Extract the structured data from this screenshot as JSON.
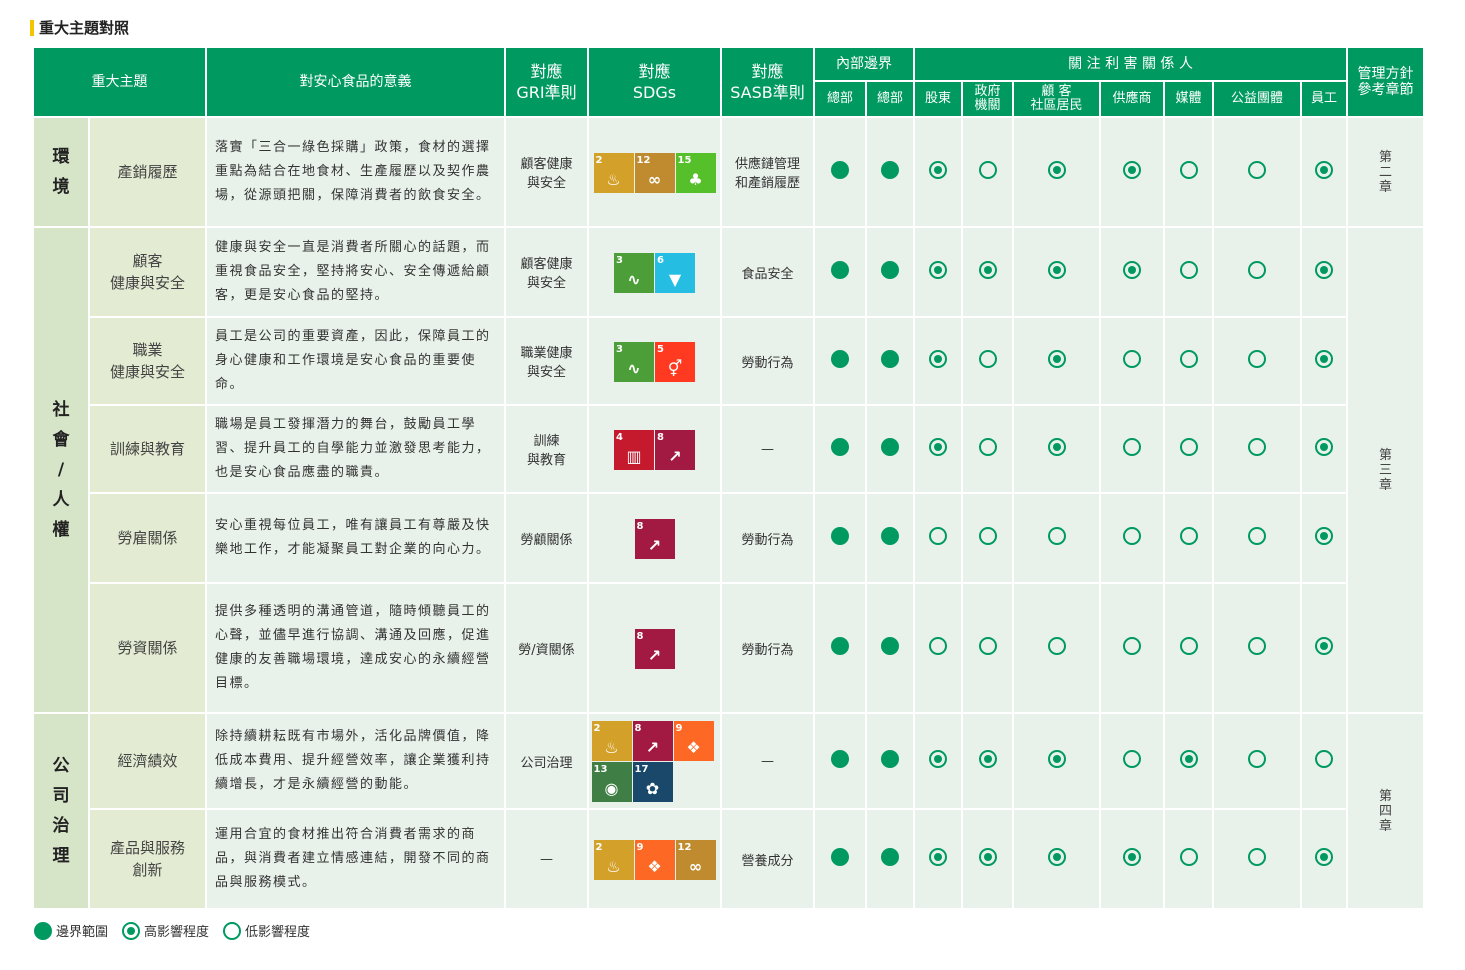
{
  "title": "重大主題對照",
  "headers": {
    "topic": "重大主題",
    "meaning": "對安心食品的意義",
    "gri": "對應\nGRI準則",
    "sdgs": "對應\nSDGs",
    "sasb": "對應\nSASB準則",
    "internal": "內部邊界",
    "stakeholders": "關 注 利 害 關 係 人",
    "chapter": "管理方針\n參考章節",
    "cols": [
      "總部",
      "總部",
      "股東",
      "政府\n機關",
      "顧 客\n社區居民",
      "供應商",
      "媒體",
      "公益團體",
      "員工"
    ]
  },
  "groups": [
    {
      "name": "環\n境",
      "rows": 1,
      "chapter": "第\n二\n章"
    },
    {
      "name": "社\n會\n/\n人\n權",
      "rows": 5,
      "chapter": "第\n三\n章"
    },
    {
      "name": "公\n司\n治\n理",
      "rows": 2,
      "chapter": "第\n四\n章"
    }
  ],
  "rows": [
    {
      "topic": "產銷履歷",
      "meaning": "落實「三合一綠色採購」政策，食材的選擇重點為結合在地食材、生產履歷以及契作農場，從源頭把關，保障消費者的飲食安全。",
      "gri": "顧客健康\n與安全",
      "sdgs": [
        2,
        12,
        15
      ],
      "sasb": "供應鏈管理\n和產銷履歷",
      "marks": "FFHLHHLLH"
    },
    {
      "topic": "顧客\n健康與安全",
      "meaning": "健康與安全一直是消費者所關心的話題，而重視食品安全，堅持將安心、安全傳遞給顧客，更是安心食品的堅持。",
      "gri": "顧客健康\n與安全",
      "sdgs": [
        3,
        6
      ],
      "sasb": "食品安全",
      "marks": "FFHHHHLLH"
    },
    {
      "topic": "職業\n健康與安全",
      "meaning": "員工是公司的重要資產，因此，保障員工的身心健康和工作環境是安心食品的重要使命。",
      "gri": "職業健康\n與安全",
      "sdgs": [
        3,
        5
      ],
      "sasb": "勞動行為",
      "marks": "FFHLHLLLH"
    },
    {
      "topic": "訓練與教育",
      "meaning": "職場是員工發揮潛力的舞台，鼓勵員工學習、提升員工的自學能力並激發思考能力，也是安心食品應盡的職責。",
      "gri": "訓練\n與教育",
      "sdgs": [
        4,
        8
      ],
      "sasb": "—",
      "marks": "FFHLHLLLH"
    },
    {
      "topic": "勞雇關係",
      "meaning": "安心重視每位員工，唯有讓員工有尊嚴及快樂地工作，才能凝聚員工對企業的向心力。",
      "gri": "勞顧關係",
      "sdgs": [
        8
      ],
      "sasb": "勞動行為",
      "marks": "FFLLLLLLH"
    },
    {
      "topic": "勞資關係",
      "meaning": "提供多種透明的溝通管道，隨時傾聽員工的心聲，並儘早進行協調、溝通及回應，促進健康的友善職場環境，達成安心的永續經營目標。",
      "gri": "勞/資關係",
      "sdgs": [
        8
      ],
      "sasb": "勞動行為",
      "marks": "FFLLLLLLH"
    },
    {
      "topic": "經濟績效",
      "meaning": "除持續耕耘既有市場外，活化品牌價值，降低成本費用、提升經營效率，讓企業獲利持續增長，才是永續經營的動能。",
      "gri": "公司治理",
      "sdgs": [
        2,
        8,
        9,
        13,
        17
      ],
      "sasb": "—",
      "marks": "FFHHHLHLL"
    },
    {
      "topic": "產品與服務\n創新",
      "meaning": "運用合宜的食材推出符合消費者需求的商品，與消費者建立情感連結，開發不同的商品與服務模式。",
      "gri": "—",
      "sdgs": [
        2,
        9,
        12
      ],
      "sasb": "營養成分",
      "marks": "FFHHHHLLH"
    }
  ],
  "sdg_info": {
    "2": {
      "label": "消除飢餓",
      "color": "#D3A029",
      "icon": "bowl-icon"
    },
    "3": {
      "label": "良好健康",
      "color": "#4C9F38",
      "icon": "heartbeat-icon"
    },
    "4": {
      "label": "優質教育",
      "color": "#C5192D",
      "icon": "book-icon"
    },
    "5": {
      "label": "性別平權",
      "color": "#FF3A21",
      "icon": "gender-icon"
    },
    "6": {
      "label": "潔淨水資源",
      "color": "#26BDE2",
      "icon": "water-icon"
    },
    "8": {
      "label": "尊嚴就業",
      "color": "#A21942",
      "icon": "growth-chart-icon"
    },
    "9": {
      "label": "產業創新",
      "color": "#FD6925",
      "icon": "cubes-icon"
    },
    "12": {
      "label": "責任消費",
      "color": "#BF8B2E",
      "icon": "infinity-icon"
    },
    "13": {
      "label": "氣候行動",
      "color": "#3F7E44",
      "icon": "eye-globe-icon"
    },
    "15": {
      "label": "陸域生態",
      "color": "#56C02B",
      "icon": "tree-icon"
    },
    "17": {
      "label": "夥伴關係",
      "color": "#19486A",
      "icon": "rings-icon"
    }
  },
  "legend": [
    {
      "type": "F",
      "label": "邊界範圍"
    },
    {
      "type": "H",
      "label": "高影響程度"
    },
    {
      "type": "L",
      "label": "低影響程度"
    }
  ]
}
